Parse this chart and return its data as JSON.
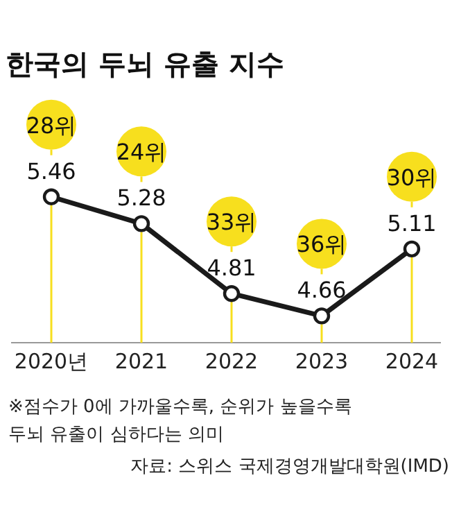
{
  "chart_data": {
    "type": "line",
    "title": "한국의 두뇌 유출 지수",
    "categories": [
      "2020년",
      "2021",
      "2022",
      "2023",
      "2024"
    ],
    "series": [
      {
        "color": "#1a1a1a",
        "values": [
          5.46,
          5.28,
          4.81,
          4.66,
          5.11
        ]
      }
    ],
    "data_labels": true,
    "grid": "x",
    "marker": "circle",
    "line_style": "solid",
    "annotations": [
      {
        "text": "28위",
        "x": "2020년"
      },
      {
        "text": "24위",
        "x": "2021"
      },
      {
        "text": "33위",
        "x": "2022"
      },
      {
        "text": "36위",
        "x": "2023"
      },
      {
        "text": "30위",
        "x": "2024"
      },
      "※점수가 0에 가까울수록, 순위가 높을수록 두뇌 유출이 심하다는 의미",
      "자료: 스위스 국제경영개발대학원(IMD)"
    ]
  }
}
